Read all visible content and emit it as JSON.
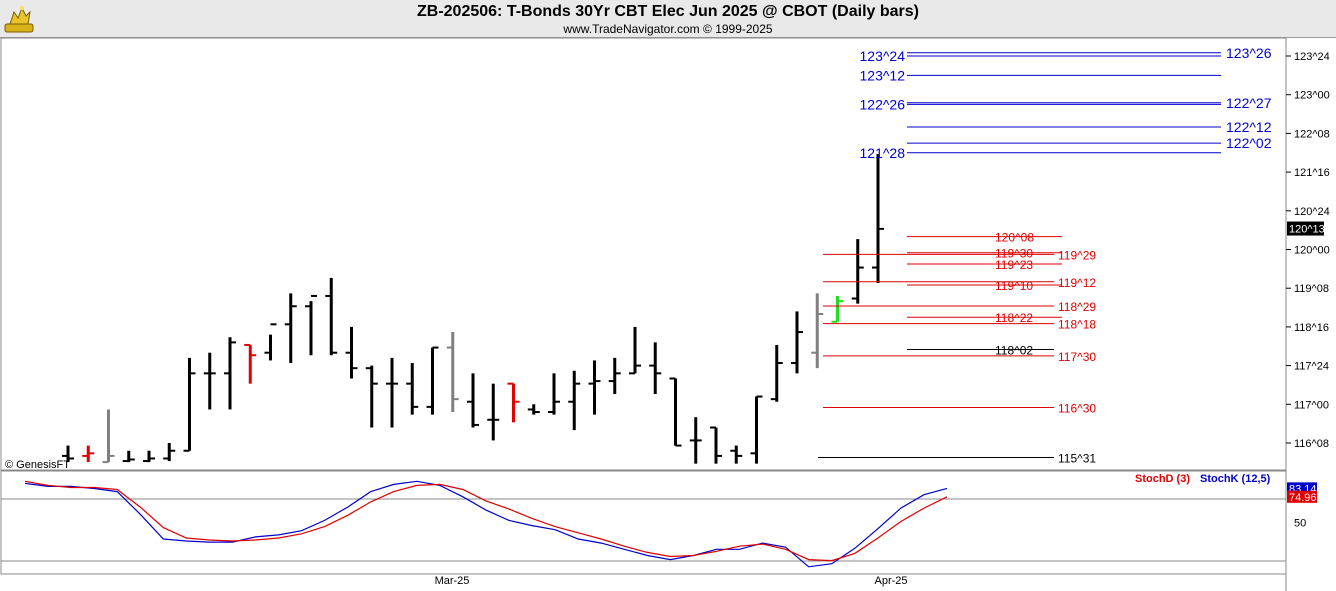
{
  "header": {
    "title": "ZB-202506:  T-Bonds 30Yr CBT Elec Jun 2025 @ CBOT  (Daily bars)",
    "subtitle": "www.TradeNavigator.com © 1999-2025",
    "logo_icon": "bull-logo-icon"
  },
  "watermark": "© GenesisFT",
  "chart_data": [
    {
      "type": "ohlc-bar",
      "price_units": "32nds",
      "y_axis": {
        "ticks": [
          "123^24",
          "123^00",
          "122^08",
          "121^16",
          "120^24",
          "120^00",
          "119^08",
          "118^16",
          "117^24",
          "117^00",
          "116^08"
        ],
        "tick_values": [
          123.75,
          123.0,
          122.25,
          121.5,
          120.75,
          120.0,
          119.25,
          118.5,
          117.75,
          117.0,
          116.25
        ],
        "last_price_label": "120^13",
        "last_price": 120.40625
      },
      "x_axis": {
        "labels": [
          "Mar-25",
          "Apr-25"
        ]
      },
      "bars": [
        {
          "h": 116.2,
          "l": 115.88,
          "o": 116.0,
          "c": 115.95,
          "color": "black"
        },
        {
          "h": 116.2,
          "l": 115.88,
          "o": 116.0,
          "c": 116.05,
          "color": "red"
        },
        {
          "h": 116.9,
          "l": 115.88,
          "o": 115.88,
          "c": 116.0,
          "color": "gray"
        },
        {
          "h": 116.1,
          "l": 115.88,
          "o": 115.9,
          "c": 115.93,
          "color": "black"
        },
        {
          "h": 116.1,
          "l": 115.88,
          "o": 115.9,
          "c": 115.95,
          "color": "black"
        },
        {
          "h": 116.25,
          "l": 115.9,
          "o": 115.95,
          "c": 116.1,
          "color": "black"
        },
        {
          "h": 117.9,
          "l": 116.1,
          "o": 116.1,
          "c": 117.6,
          "color": "black"
        },
        {
          "h": 118.0,
          "l": 116.9,
          "o": 117.6,
          "c": 117.6,
          "color": "black"
        },
        {
          "h": 118.3,
          "l": 116.9,
          "o": 117.6,
          "c": 118.2,
          "color": "black"
        },
        {
          "h": 118.15,
          "l": 117.4,
          "o": 118.15,
          "c": 117.95,
          "color": "red"
        },
        {
          "h": 118.35,
          "l": 117.85,
          "o": 118.0,
          "c": 118.55,
          "color": "black"
        },
        {
          "h": 119.15,
          "l": 117.8,
          "o": 118.55,
          "c": 118.9,
          "color": "black"
        },
        {
          "h": 119.0,
          "l": 117.95,
          "o": 118.9,
          "c": 119.1,
          "color": "black"
        },
        {
          "h": 119.45,
          "l": 117.95,
          "o": 119.1,
          "c": 118.0,
          "color": "black"
        },
        {
          "h": 118.5,
          "l": 117.5,
          "o": 118.0,
          "c": 117.7,
          "color": "black"
        },
        {
          "h": 117.75,
          "l": 116.55,
          "o": 117.7,
          "c": 117.4,
          "color": "black"
        },
        {
          "h": 117.9,
          "l": 116.55,
          "o": 117.4,
          "c": 117.4,
          "color": "black"
        },
        {
          "h": 117.8,
          "l": 116.8,
          "o": 117.4,
          "c": 116.95,
          "color": "black"
        },
        {
          "h": 118.1,
          "l": 116.8,
          "o": 116.95,
          "c": 118.1,
          "color": "black"
        },
        {
          "h": 118.4,
          "l": 116.85,
          "o": 118.1,
          "c": 117.1,
          "color": "gray"
        },
        {
          "h": 117.6,
          "l": 116.55,
          "o": 117.05,
          "c": 116.6,
          "color": "black"
        },
        {
          "h": 117.4,
          "l": 116.3,
          "o": 116.7,
          "c": 116.7,
          "color": "black"
        },
        {
          "h": 117.4,
          "l": 116.65,
          "o": 117.4,
          "c": 117.05,
          "color": "red"
        },
        {
          "h": 117.0,
          "l": 116.8,
          "o": 116.9,
          "c": 116.85,
          "color": "black"
        },
        {
          "h": 117.6,
          "l": 116.8,
          "o": 116.85,
          "c": 117.05,
          "color": "black"
        },
        {
          "h": 117.65,
          "l": 116.5,
          "o": 117.05,
          "c": 117.4,
          "color": "black"
        },
        {
          "h": 117.85,
          "l": 116.8,
          "o": 117.4,
          "c": 117.45,
          "color": "black"
        },
        {
          "h": 117.9,
          "l": 117.2,
          "o": 117.45,
          "c": 117.6,
          "color": "black"
        },
        {
          "h": 118.5,
          "l": 117.6,
          "o": 117.6,
          "c": 117.75,
          "color": "black"
        },
        {
          "h": 118.2,
          "l": 117.2,
          "o": 117.75,
          "c": 117.6,
          "color": "black"
        },
        {
          "h": 117.5,
          "l": 116.2,
          "o": 117.5,
          "c": 116.2,
          "color": "black"
        },
        {
          "h": 116.75,
          "l": 115.85,
          "o": 116.3,
          "c": 116.3,
          "color": "black"
        },
        {
          "h": 116.55,
          "l": 115.85,
          "o": 116.55,
          "c": 116.0,
          "color": "black"
        },
        {
          "h": 116.2,
          "l": 115.85,
          "o": 116.1,
          "c": 116.0,
          "color": "black"
        },
        {
          "h": 117.15,
          "l": 115.85,
          "o": 116.05,
          "c": 117.15,
          "color": "black"
        },
        {
          "h": 118.15,
          "l": 117.05,
          "o": 117.1,
          "c": 117.8,
          "color": "black"
        },
        {
          "h": 118.8,
          "l": 117.6,
          "o": 117.8,
          "c": 118.4,
          "color": "black"
        },
        {
          "h": 119.15,
          "l": 117.7,
          "o": 118.0,
          "c": 118.75,
          "color": "gray"
        },
        {
          "h": 119.1,
          "l": 118.6,
          "o": 118.6,
          "c": 119.0,
          "color": "green"
        },
        {
          "h": 120.2,
          "l": 118.95,
          "o": 119.05,
          "c": 119.65,
          "color": "black"
        },
        {
          "h": 121.85,
          "l": 119.35,
          "o": 119.65,
          "c": 120.4,
          "color": "black"
        }
      ],
      "levels_blue_left": [
        {
          "label": "123^24",
          "value": 123.75
        },
        {
          "label": "123^12",
          "value": 123.375
        },
        {
          "label": "122^26",
          "value": 122.8125
        },
        {
          "label": "121^28",
          "value": 121.875
        }
      ],
      "levels_blue_right": [
        {
          "label": "123^26",
          "value": 123.8125
        },
        {
          "label": "122^27",
          "value": 122.84375
        },
        {
          "label": "122^12",
          "value": 122.375
        },
        {
          "label": "122^02",
          "value": 122.0625
        }
      ],
      "levels_red_mid": [
        {
          "label": "120^08",
          "value": 120.25
        },
        {
          "label": "119^30",
          "value": 119.9375
        },
        {
          "label": "119^23",
          "value": 119.71875
        },
        {
          "label": "119^10",
          "value": 119.3125
        },
        {
          "label": "118^22",
          "value": 118.6875
        }
      ],
      "levels_red_right": [
        {
          "label": "119^29",
          "value": 119.90625
        },
        {
          "label": "119^12",
          "value": 119.375
        },
        {
          "label": "118^29",
          "value": 118.90625
        },
        {
          "label": "118^18",
          "value": 118.5625
        },
        {
          "label": "117^30",
          "value": 117.9375
        },
        {
          "label": "116^30",
          "value": 116.9375
        }
      ],
      "levels_black": [
        {
          "label": "118^02",
          "value": 118.0625
        },
        {
          "label": "115^31",
          "value": 115.96875
        }
      ]
    },
    {
      "type": "line",
      "title": "",
      "legend": [
        {
          "name": "StochD (3)",
          "color": "#dd0000"
        },
        {
          "name": "StochK (12,5)",
          "color": "#0000cc"
        }
      ],
      "y_axis": {
        "ticks": [
          "50"
        ],
        "tick_values": [
          50
        ],
        "ylim": [
          0,
          100
        ]
      },
      "value_labels": [
        {
          "text": "83.14",
          "color": "#0000cc",
          "value": 83.14
        },
        {
          "text": "74.96",
          "color": "#dd0000",
          "value": 74.96
        }
      ],
      "series": [
        {
          "name": "StochK (12,5)",
          "color": "#0000cc",
          "values": [
            88,
            85,
            85,
            83,
            80,
            58,
            34,
            32,
            31,
            31,
            36,
            38,
            42,
            52,
            65,
            80,
            87,
            90,
            86,
            75,
            62,
            52,
            47,
            43,
            34,
            30,
            24,
            18,
            14,
            18,
            24,
            24,
            30,
            26,
            7,
            10,
            25,
            44,
            64,
            77,
            83.14
          ]
        },
        {
          "name": "StochD (3)",
          "color": "#dd0000",
          "values": [
            90,
            86,
            84,
            84,
            82,
            65,
            45,
            35,
            33,
            32,
            33,
            35,
            39,
            46,
            57,
            70,
            80,
            86,
            87,
            82,
            71,
            63,
            54,
            46,
            40,
            34,
            27,
            21,
            17,
            18,
            22,
            27,
            29,
            24,
            14,
            13,
            20,
            35,
            51,
            64,
            74.96
          ]
        }
      ]
    }
  ]
}
